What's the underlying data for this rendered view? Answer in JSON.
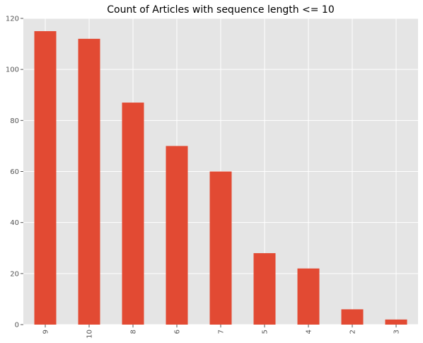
{
  "chart_data": {
    "type": "bar",
    "title": "Count of Articles with sequence length <= 10",
    "xlabel": "",
    "ylabel": "",
    "categories": [
      "9",
      "10",
      "8",
      "6",
      "7",
      "5",
      "4",
      "2",
      "3"
    ],
    "values": [
      115,
      112,
      87,
      70,
      60,
      28,
      22,
      6,
      2
    ],
    "ylim": [
      0,
      120
    ],
    "yticks": [
      0,
      20,
      40,
      60,
      80,
      100,
      120
    ],
    "grid": true,
    "x_tick_rotation": "vertical",
    "colors": {
      "bar": "#E24A33",
      "background": "#E5E5E5",
      "grid": "#FFFFFF"
    }
  }
}
